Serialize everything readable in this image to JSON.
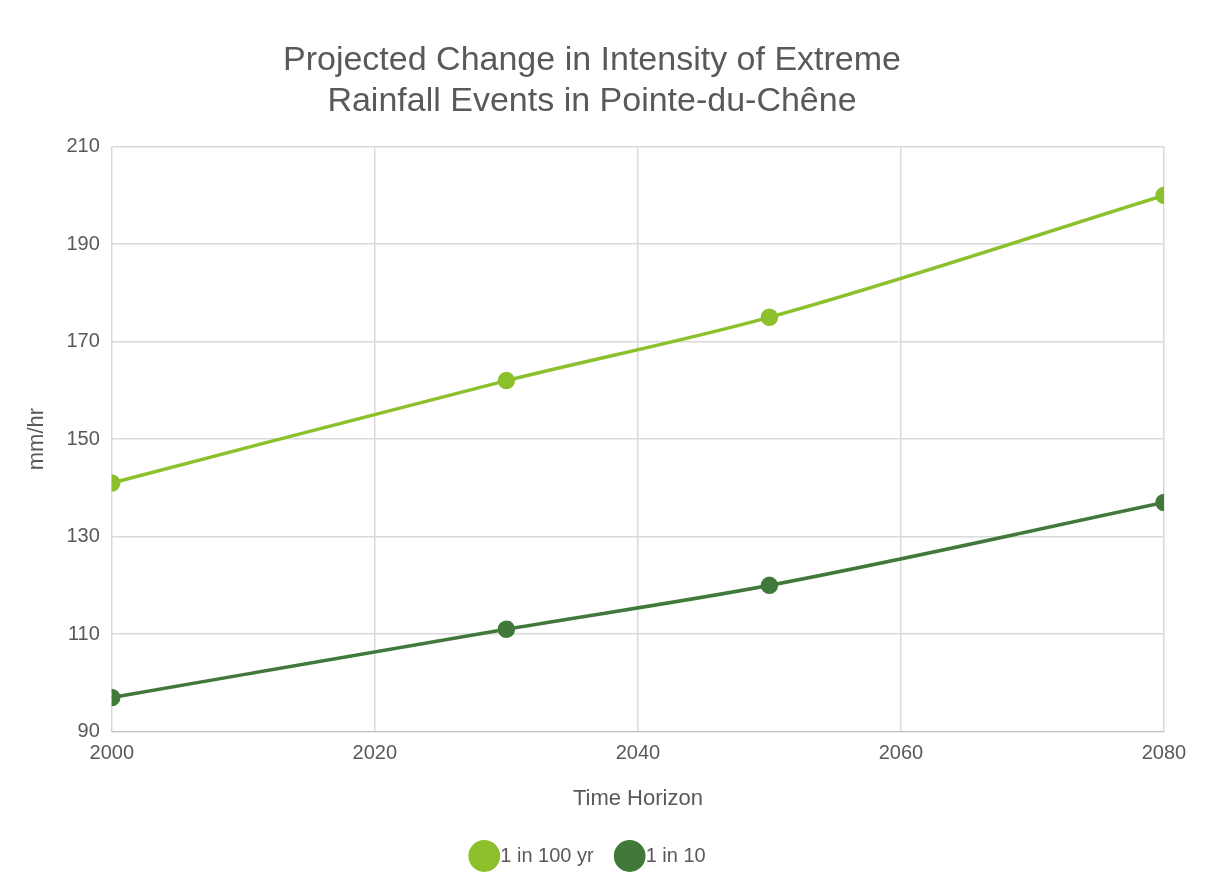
{
  "chart_data": {
    "type": "line",
    "title": "Projected Change in Intensity of Extreme Rainfall Events in Pointe-du-Chêne",
    "xlabel": "Time Horizon",
    "ylabel": "mm/hr",
    "x": [
      2000,
      2030,
      2050,
      2080
    ],
    "series": [
      {
        "name": "1 in 100 yr",
        "color": "#8cc02c",
        "values": [
          141,
          162,
          175,
          200
        ]
      },
      {
        "name": "1 in 10",
        "color": "#41793a",
        "values": [
          97,
          111,
          120,
          137
        ]
      }
    ],
    "xlim": [
      2000,
      2080
    ],
    "xticks": [
      2000,
      2020,
      2040,
      2060,
      2080
    ],
    "ylim": [
      90,
      210
    ],
    "yticks": [
      90,
      110,
      130,
      150,
      170,
      190,
      210
    ],
    "grid": true,
    "legend": "bottom",
    "marker": "circle",
    "line_style": "solid"
  }
}
